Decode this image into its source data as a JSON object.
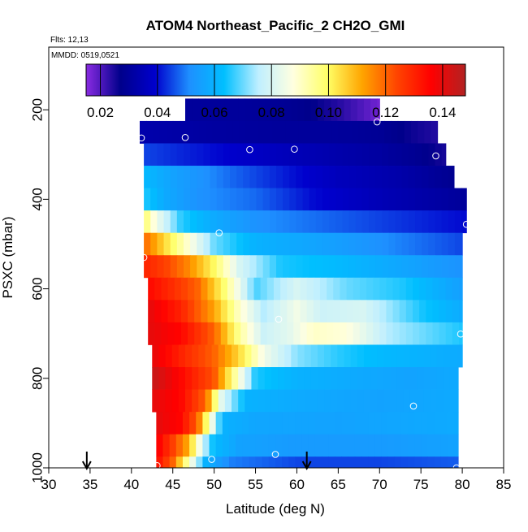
{
  "chart_data": {
    "type": "heatmap",
    "title": "ATOM4 Northeast_Pacific_2 CH2O_GMI",
    "flights_text": "Flts: 12,13",
    "mmdd_text": "MMDD: 0519,0521",
    "xlabel": "Latitude (deg N)",
    "ylabel": "PSXC (mbar)",
    "xlim": [
      30,
      85
    ],
    "ylim": [
      1000,
      60
    ],
    "x_ticks": [
      30,
      35,
      40,
      45,
      50,
      55,
      60,
      65,
      70,
      75,
      80,
      85
    ],
    "y_ticks": [
      200,
      400,
      600,
      800,
      1000
    ],
    "colorbar": {
      "min": 0.015,
      "max": 0.148,
      "ticks": [
        0.02,
        0.04,
        0.06,
        0.08,
        0.1,
        0.12,
        0.14
      ],
      "tick_labels": [
        "0.02",
        "0.04",
        "0.06",
        "0.08",
        "0.10",
        "0.12",
        "0.14"
      ],
      "stops": [
        "#8a2be2",
        "#00008b",
        "#0000cd",
        "#1e90ff",
        "#00bfff",
        "#bfefff",
        "#ffffe0",
        "#ffff66",
        "#ffa500",
        "#ff4500",
        "#ff0000",
        "#b22222"
      ]
    },
    "layers": [
      {
        "p_top": 175,
        "p_bot": 225,
        "lat_start": 46.5,
        "lat_end": 70,
        "lats": [
          47,
          53,
          58,
          62,
          65,
          68,
          70
        ],
        "values": [
          0.03,
          0.03,
          0.029,
          0.027,
          0.024,
          0.02,
          0.017
        ]
      },
      {
        "p_top": 225,
        "p_bot": 275,
        "lat_start": 41,
        "lat_end": 77,
        "lats": [
          41,
          50,
          58,
          65,
          70,
          74,
          77
        ],
        "values": [
          0.033,
          0.031,
          0.03,
          0.03,
          0.029,
          0.026,
          0.024
        ]
      },
      {
        "p_top": 275,
        "p_bot": 325,
        "lat_start": 41.5,
        "lat_end": 78,
        "lats": [
          41.5,
          50,
          58,
          65,
          70,
          75,
          78
        ],
        "values": [
          0.045,
          0.04,
          0.036,
          0.033,
          0.031,
          0.028,
          0.025
        ]
      },
      {
        "p_top": 325,
        "p_bot": 375,
        "lat_start": 41.5,
        "lat_end": 79,
        "lats": [
          41.5,
          45,
          52,
          60,
          65,
          72,
          79
        ],
        "values": [
          0.062,
          0.056,
          0.048,
          0.04,
          0.036,
          0.033,
          0.028
        ]
      },
      {
        "p_top": 375,
        "p_bot": 425,
        "lat_start": 41.5,
        "lat_end": 80.5,
        "lats": [
          41.5,
          44,
          48,
          55,
          62,
          70,
          80
        ],
        "values": [
          0.066,
          0.058,
          0.052,
          0.048,
          0.04,
          0.035,
          0.03
        ]
      },
      {
        "p_top": 425,
        "p_bot": 475,
        "lat_start": 41.5,
        "lat_end": 80.5,
        "lats": [
          41.5,
          43,
          46,
          50,
          55,
          65,
          80
        ],
        "values": [
          0.1,
          0.085,
          0.066,
          0.058,
          0.052,
          0.047,
          0.04
        ]
      },
      {
        "p_top": 475,
        "p_bot": 525,
        "lat_start": 41.5,
        "lat_end": 80,
        "lats": [
          41.5,
          44,
          47,
          50,
          55,
          65,
          80
        ],
        "values": [
          0.12,
          0.105,
          0.088,
          0.07,
          0.06,
          0.055,
          0.045
        ]
      },
      {
        "p_top": 525,
        "p_bot": 575,
        "lat_start": 41.5,
        "lat_end": 80,
        "lats": [
          41.5,
          44,
          47,
          50,
          53,
          58,
          65,
          80
        ],
        "values": [
          0.13,
          0.125,
          0.115,
          0.1,
          0.08,
          0.065,
          0.062,
          0.052
        ]
      },
      {
        "p_top": 575,
        "p_bot": 625,
        "lat_start": 42,
        "lat_end": 80,
        "lats": [
          42,
          45,
          48,
          51,
          55,
          60,
          66,
          73,
          80
        ],
        "values": [
          0.135,
          0.128,
          0.12,
          0.1,
          0.068,
          0.08,
          0.07,
          0.065,
          0.055
        ]
      },
      {
        "p_top": 625,
        "p_bot": 675,
        "lat_start": 42,
        "lat_end": 80,
        "lats": [
          42,
          46,
          50,
          53,
          56,
          60,
          63,
          68,
          75,
          80
        ],
        "values": [
          0.14,
          0.13,
          0.112,
          0.09,
          0.075,
          0.085,
          0.078,
          0.08,
          0.065,
          0.058
        ]
      },
      {
        "p_top": 675,
        "p_bot": 725,
        "lat_start": 42,
        "lat_end": 80,
        "lats": [
          42,
          46,
          50,
          53,
          56,
          59,
          62,
          66,
          71,
          80
        ],
        "values": [
          0.14,
          0.135,
          0.12,
          0.095,
          0.078,
          0.082,
          0.09,
          0.088,
          0.075,
          0.065
        ]
      },
      {
        "p_top": 725,
        "p_bot": 775,
        "lat_start": 42.5,
        "lat_end": 80,
        "lats": [
          42.5,
          46,
          50,
          53,
          56,
          60,
          65,
          70,
          75,
          80
        ],
        "values": [
          0.14,
          0.13,
          0.12,
          0.105,
          0.085,
          0.072,
          0.066,
          0.062,
          0.06,
          0.058
        ]
      },
      {
        "p_top": 775,
        "p_bot": 825,
        "lat_start": 42.5,
        "lat_end": 79.5,
        "lats": [
          42.5,
          46,
          50,
          52,
          55,
          60,
          67,
          74,
          79.5
        ],
        "values": [
          0.145,
          0.135,
          0.122,
          0.1,
          0.065,
          0.06,
          0.058,
          0.056,
          0.058
        ]
      },
      {
        "p_top": 825,
        "p_bot": 875,
        "lat_start": 42.5,
        "lat_end": 79.5,
        "lats": [
          42.5,
          46,
          49,
          51,
          54,
          60,
          70,
          79.5
        ],
        "values": [
          0.14,
          0.135,
          0.12,
          0.08,
          0.06,
          0.058,
          0.056,
          0.058
        ]
      },
      {
        "p_top": 875,
        "p_bot": 925,
        "lat_start": 43,
        "lat_end": 79.5,
        "lats": [
          43,
          46,
          48,
          49.5,
          51,
          55,
          65,
          79.5
        ],
        "values": [
          0.14,
          0.135,
          0.12,
          0.09,
          0.06,
          0.057,
          0.056,
          0.058
        ]
      },
      {
        "p_top": 925,
        "p_bot": 975,
        "lat_start": 43,
        "lat_end": 79.5,
        "lats": [
          43,
          45,
          47,
          48.5,
          50,
          53,
          60,
          70,
          79.5
        ],
        "values": [
          0.138,
          0.125,
          0.11,
          0.08,
          0.062,
          0.056,
          0.054,
          0.054,
          0.056
        ]
      },
      {
        "p_top": 975,
        "p_bot": 1010,
        "lat_start": 43,
        "lat_end": 79.5,
        "lats": [
          43,
          45,
          47,
          49,
          52,
          60,
          70,
          79.5
        ],
        "values": [
          0.135,
          0.12,
          0.09,
          0.06,
          0.05,
          0.045,
          0.045,
          0.047
        ]
      }
    ],
    "sample_points": [
      {
        "lat": 46.5,
        "p": 262
      },
      {
        "lat": 54.3,
        "p": 289
      },
      {
        "lat": 59.7,
        "p": 288
      },
      {
        "lat": 69.7,
        "p": 227
      },
      {
        "lat": 76.8,
        "p": 303
      },
      {
        "lat": 41.2,
        "p": 263
      },
      {
        "lat": 80.5,
        "p": 456
      },
      {
        "lat": 50.6,
        "p": 475
      },
      {
        "lat": 41.5,
        "p": 530
      },
      {
        "lat": 57.8,
        "p": 668
      },
      {
        "lat": 79.8,
        "p": 701
      },
      {
        "lat": 74.1,
        "p": 862
      },
      {
        "lat": 57.4,
        "p": 970
      },
      {
        "lat": 49.7,
        "p": 981
      },
      {
        "lat": 43.1,
        "p": 995
      },
      {
        "lat": 79.3,
        "p": 1000
      }
    ],
    "arrows": [
      {
        "lat": 34.6
      },
      {
        "lat": 61.2
      }
    ]
  }
}
